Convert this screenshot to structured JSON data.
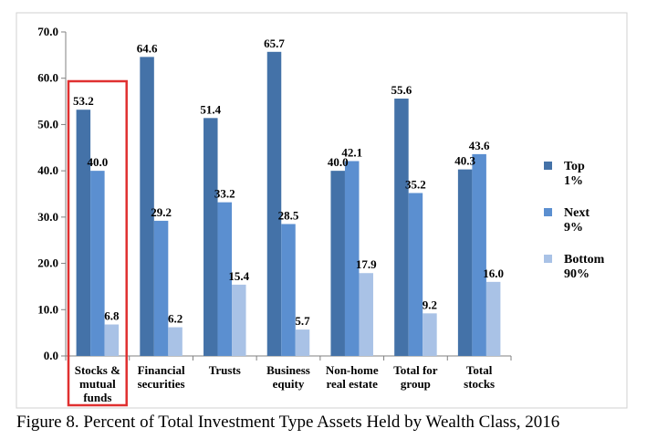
{
  "caption": "Figure 8. Percent of Total Investment Type Assets Held by Wealth Class, 2016",
  "chart_data": {
    "type": "bar",
    "title": "",
    "xlabel": "",
    "ylabel": "",
    "ylim": [
      0,
      70
    ],
    "yticks": [
      "0.0",
      "10.0",
      "20.0",
      "30.0",
      "40.0",
      "50.0",
      "60.0",
      "70.0"
    ],
    "grid": false,
    "legend_position": "right",
    "categories": [
      [
        "Stocks &",
        "mutual",
        "funds"
      ],
      [
        "Financial",
        "securities"
      ],
      [
        "Trusts"
      ],
      [
        "Business",
        "equity"
      ],
      [
        "Non-home",
        "real estate"
      ],
      [
        "Total for",
        "group"
      ],
      [
        "Total",
        "stocks"
      ]
    ],
    "series": [
      {
        "name": [
          "Top",
          "1%"
        ],
        "color": "#4472a8",
        "values": [
          53.2,
          64.6,
          51.4,
          65.7,
          40.0,
          55.6,
          40.3
        ],
        "labels": [
          "53.2",
          "64.6",
          "51.4",
          "65.7",
          "40.0",
          "55.6",
          "40.3"
        ]
      },
      {
        "name": [
          "Next",
          "9%"
        ],
        "color": "#5b8fd0",
        "values": [
          40.0,
          29.2,
          33.2,
          28.5,
          42.1,
          35.2,
          43.6
        ],
        "labels": [
          "40.0",
          "29.2",
          "33.2",
          "28.5",
          "42.1",
          "35.2",
          "43.6"
        ]
      },
      {
        "name": [
          "Bottom",
          "90%"
        ],
        "color": "#a9c2e6",
        "values": [
          6.8,
          6.2,
          15.4,
          5.7,
          17.9,
          9.2,
          16.0
        ],
        "labels": [
          "6.8",
          "6.2",
          "15.4",
          "5.7",
          "17.9",
          "9.2",
          "16.0"
        ]
      }
    ],
    "highlight": {
      "category_index": 0,
      "color": "#e03030"
    }
  }
}
